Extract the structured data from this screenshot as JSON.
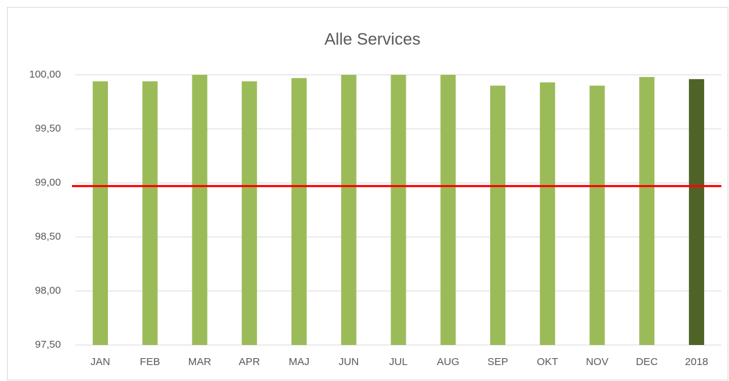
{
  "chart_data": {
    "type": "bar",
    "title": "Alle Services",
    "categories": [
      "JAN",
      "FEB",
      "MAR",
      "APR",
      "MAJ",
      "JUN",
      "JUL",
      "AUG",
      "SEP",
      "OKT",
      "NOV",
      "DEC",
      "2018"
    ],
    "values": [
      99.94,
      99.94,
      100,
      99.94,
      99.97,
      100,
      100,
      100,
      99.9,
      99.93,
      99.9,
      99.98,
      99.96
    ],
    "colors": [
      "#9bbb59",
      "#9bbb59",
      "#9bbb59",
      "#9bbb59",
      "#9bbb59",
      "#9bbb59",
      "#9bbb59",
      "#9bbb59",
      "#9bbb59",
      "#9bbb59",
      "#9bbb59",
      "#9bbb59",
      "#4f6228"
    ],
    "ylim": [
      97.5,
      100
    ],
    "yticks": [
      {
        "value": 97.5,
        "label": "97,50"
      },
      {
        "value": 98,
        "label": "98,00"
      },
      {
        "value": 98.5,
        "label": "98,50"
      },
      {
        "value": 99,
        "label": "99,00"
      },
      {
        "value": 99.5,
        "label": "99,50"
      },
      {
        "value": 100,
        "label": "100,00"
      }
    ],
    "grid": true,
    "reference_line": {
      "value": 98.97,
      "color": "#ff0000"
    }
  }
}
